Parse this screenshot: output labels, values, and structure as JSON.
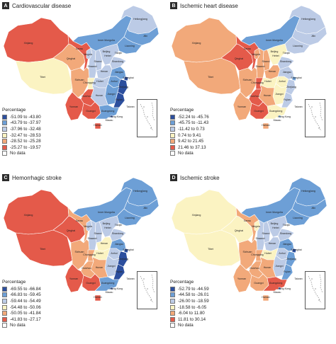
{
  "legend_title": "Percentage",
  "no_data_label": "No data",
  "province_labels": {
    "xinjiang": "Xinjiang",
    "tibet": "Tibet",
    "qinghai": "Qinghai",
    "gansu": "Gansu",
    "inner_mongolia": "Inner Mongolia",
    "heilongjiang": "Heilongjiang",
    "jilin": "Jilin",
    "liaoning": "Liaoning",
    "beijing": "Beijing",
    "tianjin": "Tianjin",
    "hebei": "Hebei",
    "shanxi": "Shanxi",
    "shandong": "Shandong",
    "ningxia": "Ningxia",
    "shaanxi": "Shaanxi",
    "henan": "Henan",
    "jiangsu": "Jiangsu",
    "shanghai": "Shanghai",
    "anhui": "Anhui",
    "hubei": "Hubei",
    "sichuan": "Sichuan",
    "chongqing": "Chongqing",
    "zhejiang": "Zhejiang",
    "jiangxi": "Jiangxi",
    "hunan": "Hunan",
    "guizhou": "Guizhou",
    "fujian": "Fujian",
    "taiwan": "Taiwan",
    "yunnan": "Yunnan",
    "guangxi": "Guangxi",
    "guangdong": "Guangdong",
    "hong_kong": "Hong Kong",
    "macau": "Macau",
    "hainan": "Hainan"
  },
  "panels": [
    {
      "letter": "A",
      "title": "Cardiovascular disease",
      "legend": [
        {
          "label": "-51.09 to -43.80",
          "color": "#2c4f9e"
        },
        {
          "label": "-43.79 to -37.97",
          "color": "#6d9fd6"
        },
        {
          "label": "-37.96 to -32.48",
          "color": "#bccbe6"
        },
        {
          "label": "-32.47 to -28.53",
          "color": "#fbf3c2"
        },
        {
          "label": "-28.52 to -25.28",
          "color": "#f2a97a"
        },
        {
          "label": "-25.27 to -19.57",
          "color": "#e45a4a"
        }
      ],
      "classes": {
        "xinjiang": 5,
        "tibet": 3,
        "qinghai": 4,
        "gansu": 5,
        "inner_mongolia": 1,
        "heilongjiang": 2,
        "jilin": 1,
        "liaoning": 1,
        "beijing": 0,
        "tianjin": 1,
        "hebei": 2,
        "shanxi": 2,
        "shandong": 2,
        "ningxia": 2,
        "shaanxi": 2,
        "henan": 2,
        "jiangsu": 1,
        "shanghai": 0,
        "anhui": 1,
        "hubei": 2,
        "sichuan": 4,
        "chongqing": 3,
        "zhejiang": 0,
        "jiangxi": 1,
        "hunan": 2,
        "guizhou": 5,
        "fujian": 0,
        "taiwan": 6,
        "yunnan": 5,
        "guangxi": 5,
        "guangdong": 1,
        "hong_kong": 0,
        "macau": 6,
        "hainan": 5
      }
    },
    {
      "letter": "B",
      "title": "Ischemic heart disease",
      "legend": [
        {
          "label": "-52.24 to -45.76",
          "color": "#2c4f9e"
        },
        {
          "label": "-45.75 to -11.43",
          "color": "#6d9fd6"
        },
        {
          "label": "-11.42 to 0.73",
          "color": "#bccbe6"
        },
        {
          "label": "0.74 to 9.41",
          "color": "#fbf3c2"
        },
        {
          "label": "9.42 to 21.45",
          "color": "#f2a97a"
        },
        {
          "label": "21.46 to 37.13",
          "color": "#e45a4a"
        }
      ],
      "classes": {
        "xinjiang": 4,
        "tibet": 4,
        "qinghai": 5,
        "gansu": 5,
        "inner_mongolia": 1,
        "heilongjiang": 2,
        "jilin": 2,
        "liaoning": 2,
        "beijing": 0,
        "tianjin": 1,
        "hebei": 3,
        "shanxi": 4,
        "shandong": 2,
        "ningxia": 4,
        "shaanxi": 4,
        "henan": 4,
        "jiangsu": 2,
        "shanghai": 1,
        "anhui": 3,
        "hubei": 3,
        "sichuan": 4,
        "chongqing": 5,
        "zhejiang": 2,
        "jiangxi": 3,
        "hunan": 4,
        "guizhou": 5,
        "fujian": 2,
        "taiwan": 6,
        "yunnan": 4,
        "guangxi": 5,
        "guangdong": 3,
        "hong_kong": 1,
        "macau": 6,
        "hainan": 4
      }
    },
    {
      "letter": "C",
      "title": "Hemorrhagic stroke",
      "legend": [
        {
          "label": "-69.55 to -66.84",
          "color": "#2c4f9e"
        },
        {
          "label": "-66.83 to -59.45",
          "color": "#6d9fd6"
        },
        {
          "label": "-59.44 to -54.49",
          "color": "#bccbe6"
        },
        {
          "label": "-54.48 to -50.06",
          "color": "#fbf3c2"
        },
        {
          "label": "-50.05 to -41.84",
          "color": "#f2a97a"
        },
        {
          "label": "-41.83 to -27.17",
          "color": "#e45a4a"
        }
      ],
      "classes": {
        "xinjiang": 5,
        "tibet": 5,
        "qinghai": 5,
        "gansu": 4,
        "inner_mongolia": 1,
        "heilongjiang": 1,
        "jilin": 1,
        "liaoning": 1,
        "beijing": 0,
        "tianjin": 1,
        "hebei": 2,
        "shanxi": 2,
        "shandong": 2,
        "ningxia": 2,
        "shaanxi": 2,
        "henan": 3,
        "jiangsu": 1,
        "shanghai": 0,
        "anhui": 2,
        "hubei": 3,
        "sichuan": 4,
        "chongqing": 4,
        "zhejiang": 0,
        "jiangxi": 2,
        "hunan": 4,
        "guizhou": 4,
        "fujian": 0,
        "taiwan": 6,
        "yunnan": 5,
        "guangxi": 5,
        "guangdong": 1,
        "hong_kong": 0,
        "macau": 6,
        "hainan": 5
      }
    },
    {
      "letter": "D",
      "title": "Ischemic stroke",
      "legend": [
        {
          "label": "-52.79 to -44.59",
          "color": "#2c4f9e"
        },
        {
          "label": "-44.58 to -26.01",
          "color": "#6d9fd6"
        },
        {
          "label": "-26.00 to -18.59",
          "color": "#bccbe6"
        },
        {
          "label": "-18.58 to -6.05",
          "color": "#fbf3c2"
        },
        {
          "label": "-6.04 to 11.80",
          "color": "#f2a97a"
        },
        {
          "label": "11.81 to 30.14",
          "color": "#e45a4a"
        }
      ],
      "classes": {
        "xinjiang": 3,
        "tibet": 3,
        "qinghai": 3,
        "gansu": 4,
        "inner_mongolia": 1,
        "heilongjiang": 1,
        "jilin": 1,
        "liaoning": 1,
        "beijing": 0,
        "tianjin": 1,
        "hebei": 2,
        "shanxi": 2,
        "shandong": 2,
        "ningxia": 3,
        "shaanxi": 2,
        "henan": 2,
        "jiangsu": 1,
        "shanghai": 0,
        "anhui": 2,
        "hubei": 3,
        "sichuan": 4,
        "chongqing": 4,
        "zhejiang": 1,
        "jiangxi": 2,
        "hunan": 4,
        "guizhou": 4,
        "fujian": 1,
        "taiwan": 6,
        "yunnan": 4,
        "guangxi": 4,
        "guangdong": 5,
        "hong_kong": 0,
        "macau": 6,
        "hainan": 4
      }
    }
  ]
}
